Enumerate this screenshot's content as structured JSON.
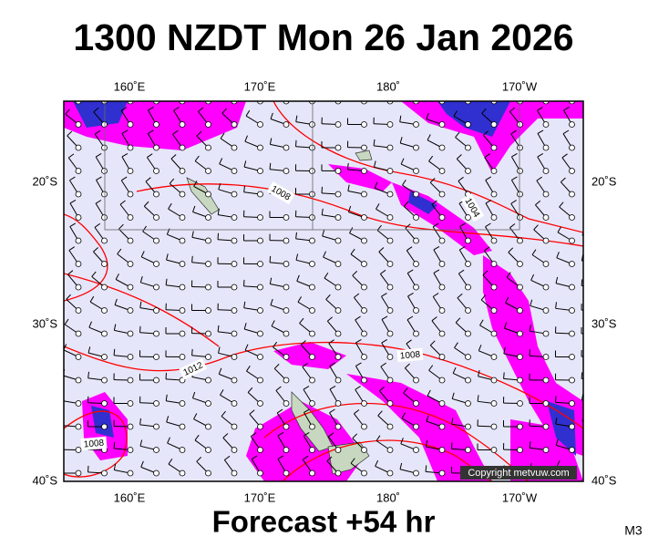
{
  "header": {
    "title": "1300 NZDT Mon 26 Jan 2026"
  },
  "map": {
    "lon_labels_top": [
      "160˚E",
      "170˚E",
      "180˚",
      "170˚W"
    ],
    "lon_labels_bottom": [
      "160˚E",
      "170˚E",
      "180˚",
      "170˚W"
    ],
    "lat_labels_left": [
      "20˚S",
      "30˚S",
      "40˚S"
    ],
    "lat_labels_right": [
      "20˚S",
      "30˚S",
      "40˚S"
    ],
    "isobar_labels": [
      "1008",
      "1004",
      "1012",
      "1008",
      "1008"
    ],
    "copyright": "Copyright metvuw.com"
  },
  "footer": {
    "forecast": "Forecast +54 hr",
    "code": "M3"
  }
}
